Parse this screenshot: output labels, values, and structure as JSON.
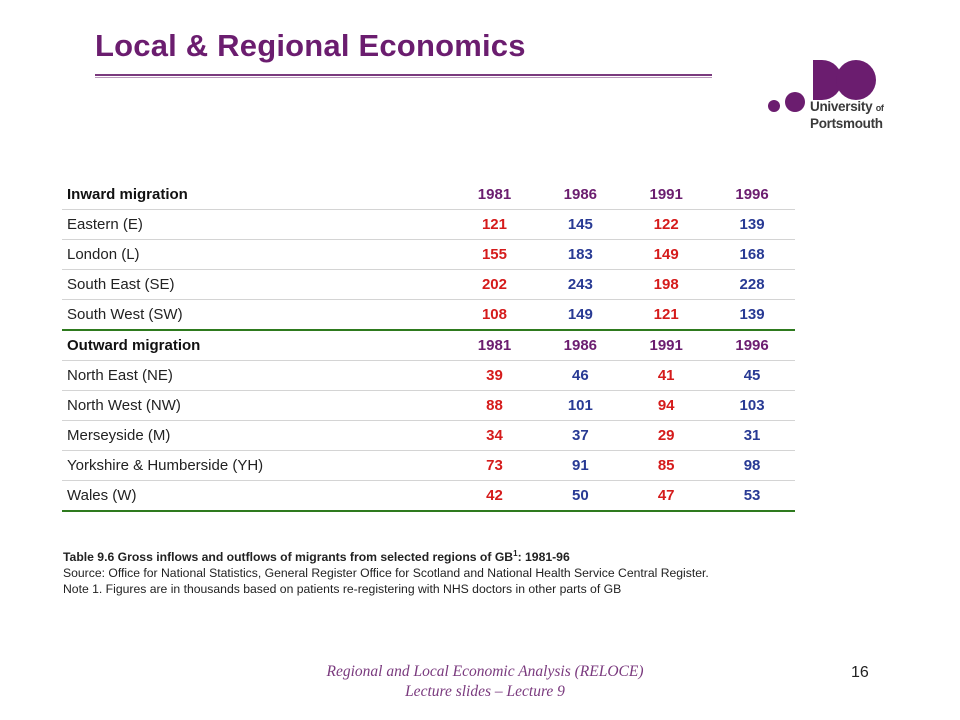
{
  "slide": {
    "title": "Local & Regional Economics",
    "page_number": "16"
  },
  "logo": {
    "line1": "University",
    "of": "of",
    "line2": "Portsmouth"
  },
  "table": {
    "sections": [
      {
        "header": "Inward migration",
        "years": [
          "1981",
          "1986",
          "1991",
          "1996"
        ],
        "rows": [
          {
            "label": "Eastern (E)",
            "values": [
              "121",
              "145",
              "122",
              "139"
            ]
          },
          {
            "label": "London (L)",
            "values": [
              "155",
              "183",
              "149",
              "168"
            ]
          },
          {
            "label": "South East (SE)",
            "values": [
              "202",
              "243",
              "198",
              "228"
            ]
          },
          {
            "label": "South West (SW)",
            "values": [
              "108",
              "149",
              "121",
              "139"
            ]
          }
        ]
      },
      {
        "header": "Outward migration",
        "years": [
          "1981",
          "1986",
          "1991",
          "1996"
        ],
        "rows": [
          {
            "label": "North East (NE)",
            "values": [
              "39",
              "46",
              "41",
              "45"
            ]
          },
          {
            "label": "North West (NW)",
            "values": [
              "88",
              "101",
              "94",
              "103"
            ]
          },
          {
            "label": "Merseyside (M)",
            "values": [
              "34",
              "37",
              "29",
              "31"
            ]
          },
          {
            "label": "Yorkshire & Humberside (YH)",
            "values": [
              "73",
              "91",
              "85",
              "98"
            ]
          },
          {
            "label": "Wales (W)",
            "values": [
              "42",
              "50",
              "47",
              "53"
            ]
          }
        ]
      }
    ],
    "colors": {
      "value_odd": "#d51b1b",
      "value_even": "#283a94",
      "year": "#6b1d6f",
      "section_rule": "#2e7a1e"
    }
  },
  "caption": {
    "title_prefix": "Table 9.6 Gross inflows and outflows of migrants from selected regions of GB",
    "title_sup": "1",
    "title_suffix": ": 1981-96",
    "source": "Source: Office for National Statistics, General Register Office for Scotland and National Health Service Central Register.",
    "note": "Note 1. Figures are in thousands based on patients re-registering with NHS doctors in other parts of GB"
  },
  "footer": {
    "line1": "Regional and Local Economic Analysis (RELOCE)",
    "line2": "Lecture slides – Lecture 9"
  }
}
